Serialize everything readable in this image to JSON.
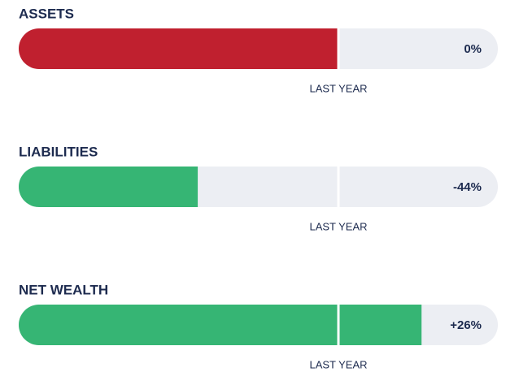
{
  "items": [
    {
      "label": "ASSETS",
      "change": 0,
      "change_label": "0%",
      "marker_label": "LAST YEAR",
      "color": "#c0202f"
    },
    {
      "label": "LIABILITIES",
      "change": -44,
      "change_label": "-44%",
      "marker_label": "LAST YEAR",
      "color": "#36b574"
    },
    {
      "label": "NET WEALTH",
      "change": 26,
      "change_label": "+26%",
      "marker_label": "LAST YEAR",
      "color": "#36b574"
    }
  ]
}
